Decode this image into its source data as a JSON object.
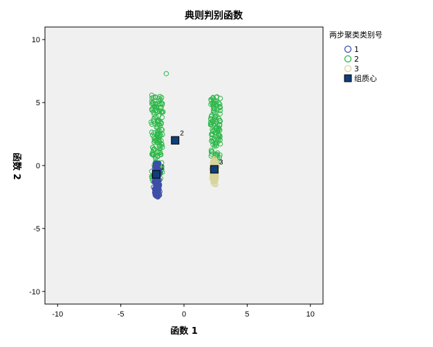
{
  "chart_data": {
    "type": "scatter",
    "title": "典则判别函数",
    "xlabel": "函数 1",
    "ylabel": "函数 2",
    "xlim": [
      -11,
      11
    ],
    "ylim": [
      -11,
      11
    ],
    "xticks": [
      -10,
      -5,
      0,
      5,
      10
    ],
    "yticks": [
      -10,
      -5,
      0,
      5,
      10
    ],
    "grid": false,
    "legend": {
      "title": "两步聚类类别号",
      "placement": "right",
      "entries": [
        {
          "label": "1",
          "marker": "circle",
          "color": "#3d4fa8"
        },
        {
          "label": "2",
          "marker": "circle",
          "color": "#2eb84a"
        },
        {
          "label": "3",
          "marker": "circle",
          "color": "#d8d59c"
        },
        {
          "label": "组质心",
          "marker": "square",
          "color": "#0f3f7a"
        }
      ]
    },
    "series": [
      {
        "name": "1",
        "color": "#3d4fa8",
        "x_range": [
          -2.6,
          -1.5
        ],
        "y_range": [
          -2.5,
          0.2
        ]
      },
      {
        "name": "2",
        "color": "#2eb84a",
        "x_range_left": [
          -2.6,
          -1.6
        ],
        "x_range_right": [
          2.1,
          2.9
        ],
        "y_range": [
          -1.5,
          5.6
        ],
        "outlier": [
          -1.4,
          7.3
        ]
      },
      {
        "name": "3",
        "color": "#d8d59c",
        "x_range": [
          1.9,
          2.9
        ],
        "y_range": [
          -2.6,
          1.5
        ]
      }
    ],
    "centroids": [
      {
        "label": "1",
        "x": -2.2,
        "y": -0.7
      },
      {
        "label": "2",
        "x": -0.7,
        "y": 2.0
      },
      {
        "label": "3",
        "x": 2.4,
        "y": -0.3
      }
    ]
  }
}
